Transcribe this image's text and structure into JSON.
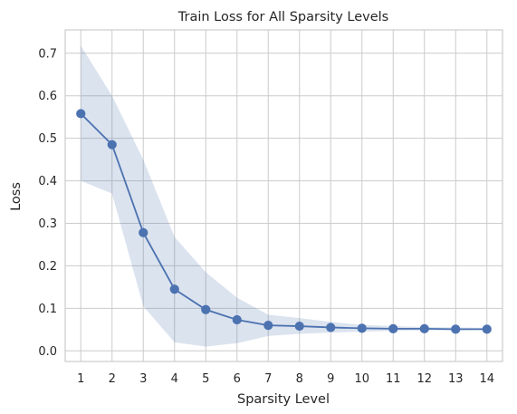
{
  "chart_data": {
    "type": "line",
    "title": "Train Loss for All Sparsity Levels",
    "xlabel": "Sparsity Level",
    "ylabel": "Loss",
    "x": [
      1,
      2,
      3,
      4,
      5,
      6,
      7,
      8,
      9,
      10,
      11,
      12,
      13,
      14
    ],
    "xlim": [
      0.5,
      14.5
    ],
    "ylim": [
      -0.025,
      0.755
    ],
    "yticks": [
      0.0,
      0.1,
      0.2,
      0.3,
      0.4,
      0.5,
      0.6,
      0.7
    ],
    "ytick_labels": [
      "0.0",
      "0.1",
      "0.2",
      "0.3",
      "0.4",
      "0.5",
      "0.6",
      "0.7"
    ],
    "xtick_labels": [
      "1",
      "2",
      "3",
      "4",
      "5",
      "6",
      "7",
      "8",
      "9",
      "10",
      "11",
      "12",
      "13",
      "14"
    ],
    "grid": true,
    "series": [
      {
        "values": [
          0.558,
          0.485,
          0.278,
          0.145,
          0.097,
          0.073,
          0.06,
          0.058,
          0.055,
          0.053,
          0.052,
          0.052,
          0.051,
          0.051
        ],
        "band_upper": [
          0.718,
          0.6,
          0.45,
          0.268,
          0.185,
          0.125,
          0.085,
          0.077,
          0.068,
          0.061,
          0.058,
          0.056,
          0.055,
          0.054
        ],
        "band_lower": [
          0.4,
          0.37,
          0.105,
          0.02,
          0.01,
          0.018,
          0.035,
          0.04,
          0.043,
          0.045,
          0.047,
          0.048,
          0.048,
          0.049
        ],
        "color": "#4c72b0",
        "band_color": "#4c72b0",
        "marker": "circle"
      }
    ]
  },
  "colors": {
    "grid": "#cccccc",
    "spine": "#cccccc",
    "background": "#ffffff"
  }
}
